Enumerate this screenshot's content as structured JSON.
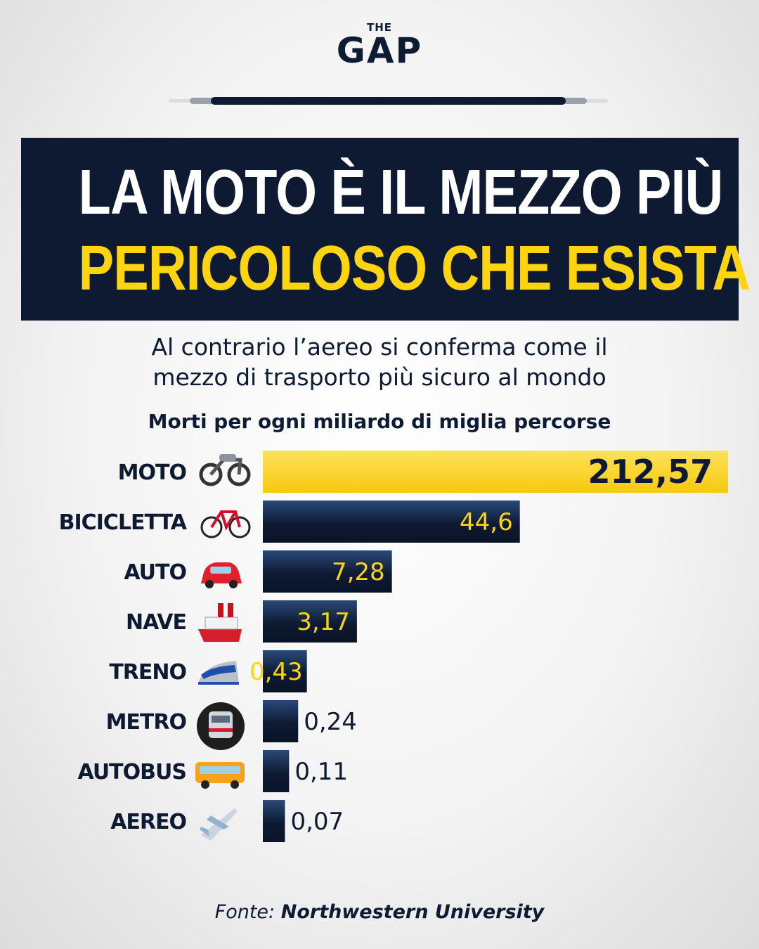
{
  "brand": {
    "logo_small": "THE",
    "logo_main": "GAP",
    "colors": {
      "navy": "#0e1a31",
      "yellow": "#fcd410",
      "white": "#ffffff"
    }
  },
  "headline": {
    "line1": "LA MOTO È IL MEZZO PIÙ",
    "line2": "PERICOLOSO CHE ESISTA"
  },
  "subtitle": {
    "line1": "Al contrario l’aereo si conferma come il",
    "line2": "mezzo di trasporto più sicuro al mondo"
  },
  "chart_data": {
    "type": "bar",
    "orientation": "horizontal",
    "title": "Morti per ogni miliardo di miglia percorse",
    "categories": [
      "MOTO",
      "BICICLETTA",
      "AUTO",
      "NAVE",
      "TRENO",
      "METRO",
      "AUTOBUS",
      "AEREO"
    ],
    "values": [
      212.57,
      44.6,
      7.28,
      3.17,
      0.43,
      0.24,
      0.11,
      0.07
    ],
    "value_labels": [
      "212,57",
      "44,6",
      "7,28",
      "3,17",
      "0,43",
      "0,24",
      "0,11",
      "0,07"
    ],
    "icons": [
      "motorcycle-icon",
      "bicycle-icon",
      "car-icon",
      "ship-icon",
      "train-icon",
      "metro-icon",
      "bus-icon",
      "airplane-icon"
    ],
    "bar_colors": {
      "highlight": "#f6c90e",
      "default": "#0e1a31"
    },
    "value_label_colors": {
      "highlight": "#0e1a31",
      "inside": "#fcd410",
      "outside": "#0e1a31"
    },
    "scale": "non-linear (display)",
    "grid": false,
    "legend": "none"
  },
  "source": {
    "prefix": "Fonte:",
    "name": "Northwestern University"
  }
}
